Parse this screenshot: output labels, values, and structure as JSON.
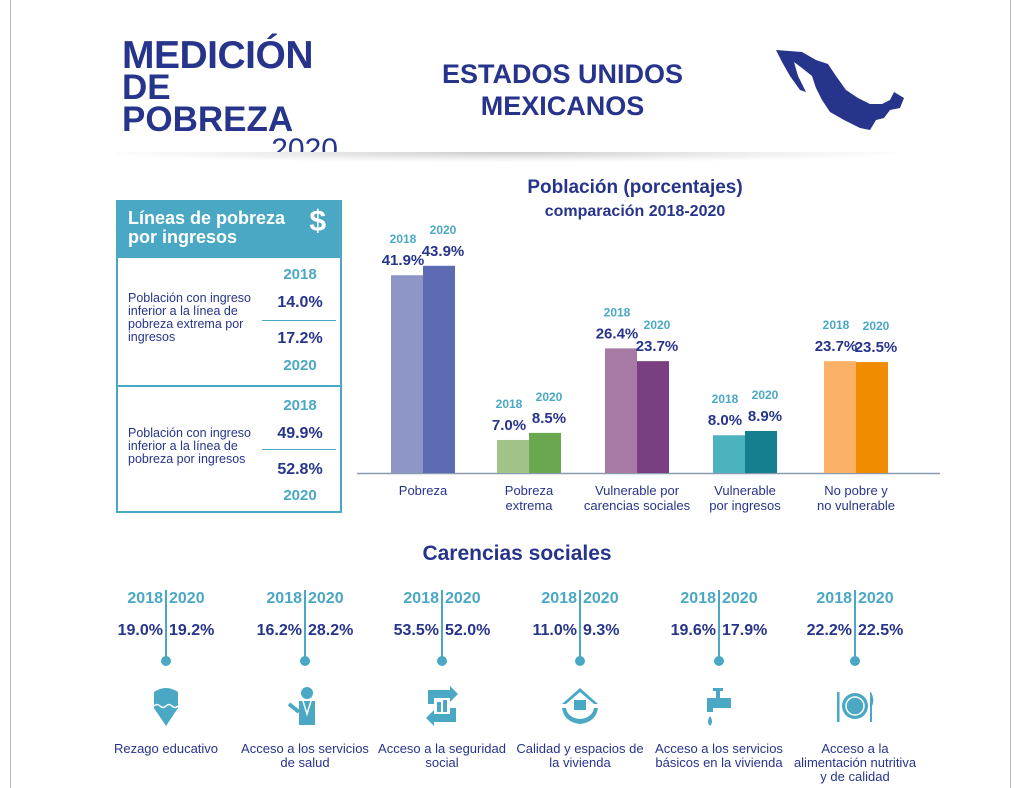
{
  "header": {
    "logo_line1": "MEDICIÓN",
    "logo_line2": "DE POBREZA",
    "logo_year": "2020",
    "country_line1": "ESTADOS UNIDOS",
    "country_line2": "MEXICANOS"
  },
  "panel": {
    "title": "Líneas de pobreza por ingresos",
    "icon": "dollar-icon",
    "symbol": "$",
    "sections": [
      {
        "desc": "Población con ingreso inferior a la línea de pobreza extrema por ingresos",
        "year_a": "2018",
        "val_a": "14.0%",
        "val_b": "17.2%",
        "year_b": "2020"
      },
      {
        "desc": "Población con ingreso inferior a la línea de pobreza por ingresos",
        "year_a": "2018",
        "val_a": "49.9%",
        "val_b": "52.8%",
        "year_b": "2020"
      }
    ]
  },
  "chart_data": {
    "type": "bar",
    "title": "Población (porcentajes)",
    "subtitle": "comparación 2018-2020",
    "categories": [
      "Pobreza",
      "Pobreza extrema",
      "Vulnerable por carencias sociales",
      "Vulnerable por ingresos",
      "No pobre y no vulnerable"
    ],
    "category_lines": [
      [
        "Pobreza"
      ],
      [
        "Pobreza",
        "extrema"
      ],
      [
        "Vulnerable por",
        "carencias sociales"
      ],
      [
        "Vulnerable",
        "por ingresos"
      ],
      [
        "No pobre y",
        "no vulnerable"
      ]
    ],
    "series": [
      {
        "name": "2018",
        "values": [
          41.9,
          7.0,
          26.4,
          8.0,
          23.7
        ]
      },
      {
        "name": "2020",
        "values": [
          43.9,
          8.5,
          23.7,
          8.9,
          23.5
        ]
      }
    ],
    "labels": [
      [
        "41.9%",
        "43.9%"
      ],
      [
        "7.0%",
        "8.5%"
      ],
      [
        "26.4%",
        "23.7%"
      ],
      [
        "8.0%",
        "8.9%"
      ],
      [
        "23.7%",
        "23.5%"
      ]
    ],
    "colors": [
      [
        "#8e96c8",
        "#5b6ab1"
      ],
      [
        "#9fc388",
        "#6aa84f"
      ],
      [
        "#a77aa6",
        "#7a3f80"
      ],
      [
        "#4db2c0",
        "#177e90"
      ],
      [
        "#fbb266",
        "#f08c00"
      ]
    ],
    "ylim": [
      0,
      45
    ]
  },
  "carencias": {
    "title": "Carencias sociales",
    "items": [
      {
        "y1": "2018",
        "y2": "2020",
        "v1": "19.0%",
        "v2": "19.2%",
        "label": "Rezago educativo",
        "icon": "pencil-icon"
      },
      {
        "y1": "2018",
        "y2": "2020",
        "v1": "16.2%",
        "v2": "28.2%",
        "label": "Acceso a los servicios de salud",
        "icon": "doctor-icon"
      },
      {
        "y1": "2018",
        "y2": "2020",
        "v1": "53.5%",
        "v2": "52.0%",
        "label": "Acceso a la seguridad social",
        "icon": "social-security-icon"
      },
      {
        "y1": "2018",
        "y2": "2020",
        "v1": "11.0%",
        "v2": "9.3%",
        "label": "Calidad y espacios de la vivienda",
        "icon": "house-hands-icon"
      },
      {
        "y1": "2018",
        "y2": "2020",
        "v1": "19.6%",
        "v2": "17.9%",
        "label": "Acceso a los servicios básicos en la vivienda",
        "icon": "faucet-icon"
      },
      {
        "y1": "2018",
        "y2": "2020",
        "v1": "22.2%",
        "v2": "22.5%",
        "label": "Acceso a la alimentación nutritiva y de calidad",
        "icon": "plate-icon"
      }
    ]
  }
}
